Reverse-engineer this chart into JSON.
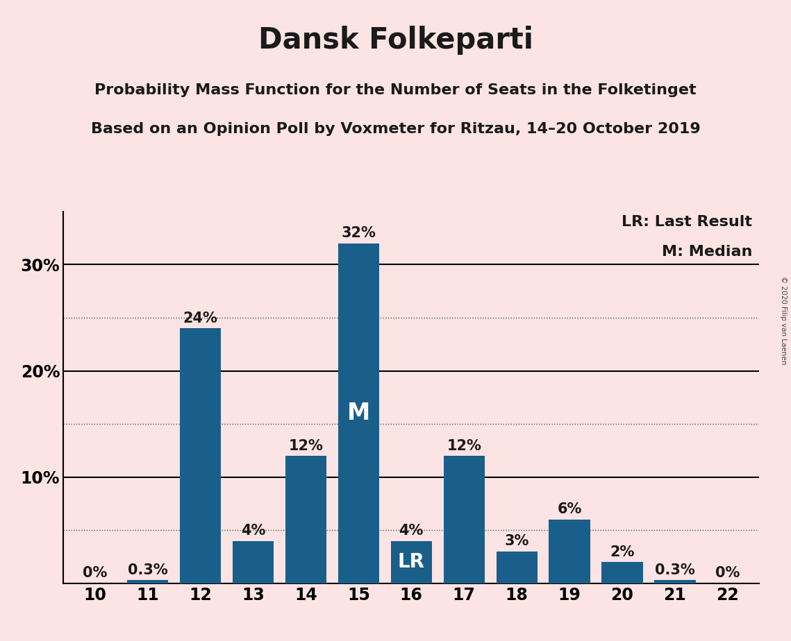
{
  "title": "Dansk Folkeparti",
  "subtitle1": "Probability Mass Function for the Number of Seats in the Folketinget",
  "subtitle2": "Based on an Opinion Poll by Voxmeter for Ritzau, 14–20 October 2019",
  "copyright": "© 2020 Filip van Laenen",
  "seats": [
    10,
    11,
    12,
    13,
    14,
    15,
    16,
    17,
    18,
    19,
    20,
    21,
    22
  ],
  "probabilities": [
    0.0,
    0.3,
    24.0,
    4.0,
    12.0,
    32.0,
    4.0,
    12.0,
    3.0,
    6.0,
    2.0,
    0.3,
    0.0
  ],
  "bar_color": "#1a5f8a",
  "background_color": "#fce4e4",
  "median_seat": 15,
  "last_result_seat": 16,
  "ytick_labels": [
    10,
    20,
    30
  ],
  "ymax": 35,
  "solid_lines": [
    10,
    20,
    30
  ],
  "dotted_lines": [
    5,
    15,
    25
  ],
  "legend_lr": "LR: Last Result",
  "legend_m": "M: Median",
  "title_fontsize": 30,
  "subtitle_fontsize": 16,
  "tick_fontsize": 17,
  "annotation_fontsize": 15,
  "legend_fontsize": 16,
  "m_fontsize": 24,
  "lr_fontsize": 20
}
